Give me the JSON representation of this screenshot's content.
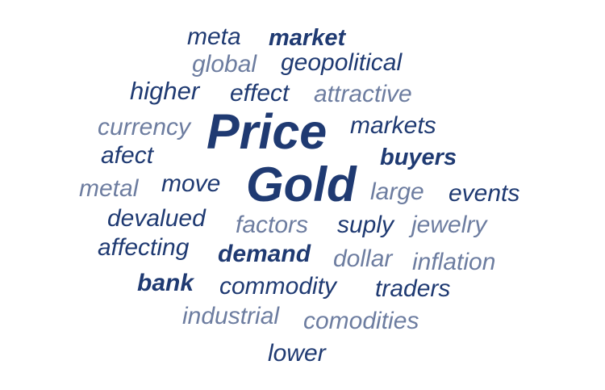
{
  "colors": {
    "dark": "#1f3a72",
    "light": "#6d7da0",
    "background": "#ffffff"
  },
  "words": {
    "meta": "meta",
    "market": "market",
    "global": "global",
    "geopolitical": "geopolitical",
    "higher": "higher",
    "effect": "effect",
    "attractive": "attractive",
    "currency": "currency",
    "price": "Price",
    "markets": "markets",
    "afect": "afect",
    "buyers": "buyers",
    "metal": "metal",
    "move": "move",
    "gold": "Gold",
    "large": "large",
    "events": "events",
    "devalued": "devalued",
    "factors": "factors",
    "suply": "suply",
    "jewelry": "jewelry",
    "affecting": "affecting",
    "demand": "demand",
    "dollar": "dollar",
    "inflation": "inflation",
    "bank": "bank",
    "commodity": "commodity",
    "traders": "traders",
    "industrial": "industrial",
    "comodities": "comodities",
    "lower": "lower"
  }
}
